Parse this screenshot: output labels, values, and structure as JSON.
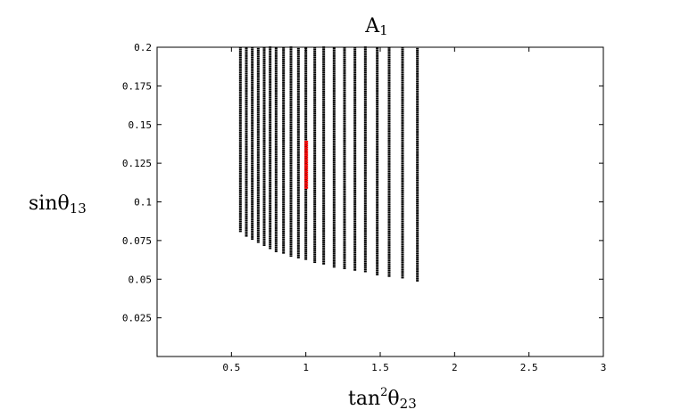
{
  "chart_data": {
    "type": "scatter",
    "title": {
      "main": "A",
      "sub": "1"
    },
    "xlabel": {
      "main": "tan",
      "sup": "2",
      "theta": "θ",
      "sub": "23"
    },
    "ylabel": {
      "main": "sinθ",
      "sub": "13"
    },
    "xlim": [
      0,
      3
    ],
    "ylim": [
      0,
      0.2
    ],
    "xticks": [
      0.5,
      1,
      1.5,
      2,
      2.5,
      3
    ],
    "xtick_labels": [
      "0.5",
      "1",
      "1.5",
      "2",
      "2.5",
      "3"
    ],
    "yticks": [
      0.025,
      0.05,
      0.075,
      0.1,
      0.125,
      0.15,
      0.175,
      0.2
    ],
    "ytick_labels": [
      "0.025",
      "0.05",
      "0.075",
      "0.1",
      "0.125",
      "0.15",
      "0.175",
      "0.2"
    ],
    "grid": false,
    "series": [
      {
        "marker_color": "#000000",
        "columns_x": [
          0.56,
          0.6,
          0.64,
          0.68,
          0.72,
          0.76,
          0.8,
          0.85,
          0.9,
          0.95,
          1.0,
          1.06,
          1.12,
          1.19,
          1.26,
          1.33,
          1.4,
          1.48,
          1.56,
          1.65,
          1.75
        ],
        "columns_ymin": [
          0.081,
          0.078,
          0.076,
          0.074,
          0.072,
          0.07,
          0.068,
          0.067,
          0.065,
          0.064,
          0.063,
          0.061,
          0.06,
          0.058,
          0.057,
          0.056,
          0.055,
          0.053,
          0.052,
          0.051,
          0.049
        ],
        "columns_ymax": 0.2
      },
      {
        "marker_color": "#ff0000",
        "columns_x": [
          1.0
        ],
        "columns_ymin": [
          0.109
        ],
        "columns_ymax": 0.14
      }
    ]
  }
}
